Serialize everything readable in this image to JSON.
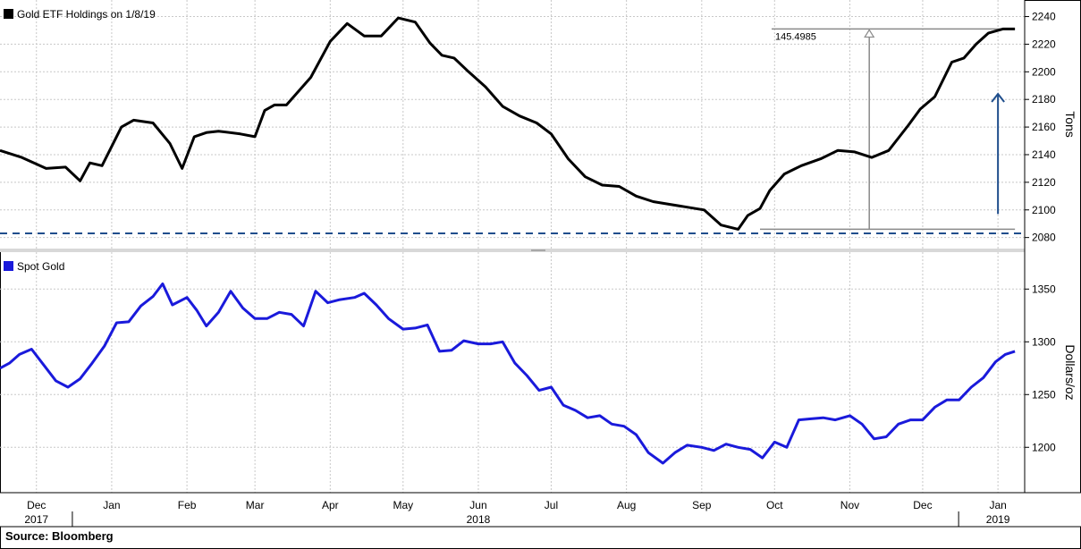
{
  "source": "Source: Bloomberg",
  "colors": {
    "holdings": "#000000",
    "gold": "#1a1adb",
    "baseline": "#1f4e8c",
    "arrow": "#1f4e8c",
    "grid": "#c8c8c8",
    "annotation": "#8a8a8a"
  },
  "x_axis": {
    "ticks": [
      {
        "label": "Dec",
        "x": "2017-12-01"
      },
      {
        "label": "Jan",
        "x": "2018-01-01"
      },
      {
        "label": "Feb",
        "x": "2018-02-01"
      },
      {
        "label": "Mar",
        "x": "2018-03-01"
      },
      {
        "label": "Apr",
        "x": "2018-04-01"
      },
      {
        "label": "May",
        "x": "2018-05-01"
      },
      {
        "label": "Jun",
        "x": "2018-06-01"
      },
      {
        "label": "Jul",
        "x": "2018-07-01"
      },
      {
        "label": "Aug",
        "x": "2018-08-01"
      },
      {
        "label": "Sep",
        "x": "2018-09-01"
      },
      {
        "label": "Oct",
        "x": "2018-10-01"
      },
      {
        "label": "Nov",
        "x": "2018-11-01"
      },
      {
        "label": "Dec",
        "x": "2018-12-01"
      },
      {
        "label": "Jan",
        "x": "2019-01-01"
      }
    ],
    "years": [
      {
        "label": "2017",
        "x": "2017-12-01"
      },
      {
        "label": "2018",
        "x": "2018-06-01"
      },
      {
        "label": "2019",
        "x": "2019-01-01"
      }
    ],
    "range": [
      "2017-11-16",
      "2019-01-12"
    ]
  },
  "chart_data": [
    {
      "type": "line",
      "legend": "Gold ETF Holdings on 1/8/19",
      "ylabel": "Tons",
      "ylim": [
        2072,
        2252
      ],
      "yticks": [
        2080,
        2100,
        2120,
        2140,
        2160,
        2180,
        2200,
        2220,
        2240
      ],
      "grid": true,
      "baseline": 2083,
      "annotation": {
        "label": "145.4985",
        "low": 2086,
        "high": 2231,
        "x": "2018-11-09",
        "low_x": "2018-09-25",
        "high_x": "2019-01-08"
      },
      "arrow": {
        "x": "2019-01-01",
        "from": 2097,
        "to": 2184
      },
      "x": [
        "2017-11-16",
        "2017-11-25",
        "2017-12-05",
        "2017-12-13",
        "2017-12-19",
        "2017-12-23",
        "2017-12-28",
        "2018-01-05",
        "2018-01-10",
        "2018-01-18",
        "2018-01-25",
        "2018-01-30",
        "2018-02-04",
        "2018-02-09",
        "2018-02-14",
        "2018-02-23",
        "2018-03-01",
        "2018-03-05",
        "2018-03-09",
        "2018-03-14",
        "2018-03-24",
        "2018-04-01",
        "2018-04-08",
        "2018-04-15",
        "2018-04-22",
        "2018-04-29",
        "2018-05-06",
        "2018-05-12",
        "2018-05-17",
        "2018-05-22",
        "2018-05-28",
        "2018-06-04",
        "2018-06-11",
        "2018-06-18",
        "2018-06-25",
        "2018-07-01",
        "2018-07-08",
        "2018-07-15",
        "2018-07-22",
        "2018-07-29",
        "2018-08-05",
        "2018-08-12",
        "2018-08-19",
        "2018-08-26",
        "2018-09-02",
        "2018-09-09",
        "2018-09-16",
        "2018-09-20",
        "2018-09-25",
        "2018-09-29",
        "2018-10-05",
        "2018-10-12",
        "2018-10-20",
        "2018-10-27",
        "2018-11-03",
        "2018-11-10",
        "2018-11-17",
        "2018-11-25",
        "2018-11-30",
        "2018-12-06",
        "2018-12-13",
        "2018-12-18",
        "2018-12-23",
        "2018-12-28",
        "2019-01-03",
        "2019-01-08"
      ],
      "values": [
        2143,
        2138,
        2130,
        2131,
        2121,
        2134,
        2132,
        2160,
        2165,
        2163,
        2148,
        2130,
        2153,
        2156,
        2157,
        2155,
        2153,
        2172,
        2176,
        2176,
        2196,
        2222,
        2235,
        2226,
        2226,
        2239,
        2236,
        2221,
        2212,
        2210,
        2200,
        2189,
        2175,
        2168,
        2163,
        2155,
        2137,
        2124,
        2118,
        2117,
        2110,
        2106,
        2104,
        2102,
        2100,
        2089,
        2086,
        2096,
        2101,
        2114,
        2126,
        2132,
        2137,
        2143,
        2142,
        2138,
        2143,
        2161,
        2173,
        2182,
        2207,
        2210,
        2220,
        2228,
        2231,
        2231
      ]
    },
    {
      "type": "line",
      "legend": "Spot Gold",
      "ylabel": "Dollars/oz",
      "ylim": [
        1157,
        1385
      ],
      "yticks": [
        1200,
        1250,
        1300,
        1350
      ],
      "grid": true,
      "x": [
        "2017-11-16",
        "2017-11-20",
        "2017-11-24",
        "2017-11-29",
        "2017-12-04",
        "2017-12-09",
        "2017-12-14",
        "2017-12-19",
        "2017-12-24",
        "2017-12-29",
        "2018-01-03",
        "2018-01-08",
        "2018-01-13",
        "2018-01-18",
        "2018-01-22",
        "2018-01-26",
        "2018-02-01",
        "2018-02-05",
        "2018-02-09",
        "2018-02-14",
        "2018-02-19",
        "2018-02-24",
        "2018-03-01",
        "2018-03-06",
        "2018-03-11",
        "2018-03-16",
        "2018-03-21",
        "2018-03-26",
        "2018-03-31",
        "2018-04-05",
        "2018-04-11",
        "2018-04-15",
        "2018-04-20",
        "2018-04-25",
        "2018-05-01",
        "2018-05-06",
        "2018-05-11",
        "2018-05-16",
        "2018-05-21",
        "2018-05-26",
        "2018-06-01",
        "2018-06-06",
        "2018-06-11",
        "2018-06-16",
        "2018-06-21",
        "2018-06-26",
        "2018-07-01",
        "2018-07-06",
        "2018-07-11",
        "2018-07-16",
        "2018-07-21",
        "2018-07-26",
        "2018-07-31",
        "2018-08-05",
        "2018-08-10",
        "2018-08-16",
        "2018-08-21",
        "2018-08-26",
        "2018-09-01",
        "2018-09-06",
        "2018-09-11",
        "2018-09-16",
        "2018-09-21",
        "2018-09-26",
        "2018-10-01",
        "2018-10-06",
        "2018-10-11",
        "2018-10-16",
        "2018-10-21",
        "2018-10-26",
        "2018-11-01",
        "2018-11-06",
        "2018-11-11",
        "2018-11-16",
        "2018-11-21",
        "2018-11-26",
        "2018-12-01",
        "2018-12-06",
        "2018-12-11",
        "2018-12-16",
        "2018-12-21",
        "2018-12-26",
        "2018-12-31",
        "2019-01-04",
        "2019-01-08"
      ],
      "values": [
        1275,
        1280,
        1288,
        1293,
        1278,
        1263,
        1257,
        1265,
        1280,
        1296,
        1318,
        1319,
        1334,
        1343,
        1355,
        1335,
        1342,
        1330,
        1315,
        1328,
        1348,
        1332,
        1322,
        1322,
        1328,
        1326,
        1315,
        1348,
        1337,
        1340,
        1342,
        1346,
        1335,
        1322,
        1312,
        1313,
        1316,
        1291,
        1292,
        1301,
        1298,
        1298,
        1300,
        1280,
        1268,
        1254,
        1257,
        1240,
        1235,
        1228,
        1230,
        1222,
        1220,
        1212,
        1195,
        1185,
        1195,
        1202,
        1200,
        1197,
        1203,
        1200,
        1198,
        1190,
        1205,
        1200,
        1226,
        1227,
        1228,
        1226,
        1230,
        1222,
        1208,
        1210,
        1222,
        1226,
        1226,
        1238,
        1245,
        1245,
        1257,
        1266,
        1281,
        1288,
        1291
      ]
    }
  ]
}
